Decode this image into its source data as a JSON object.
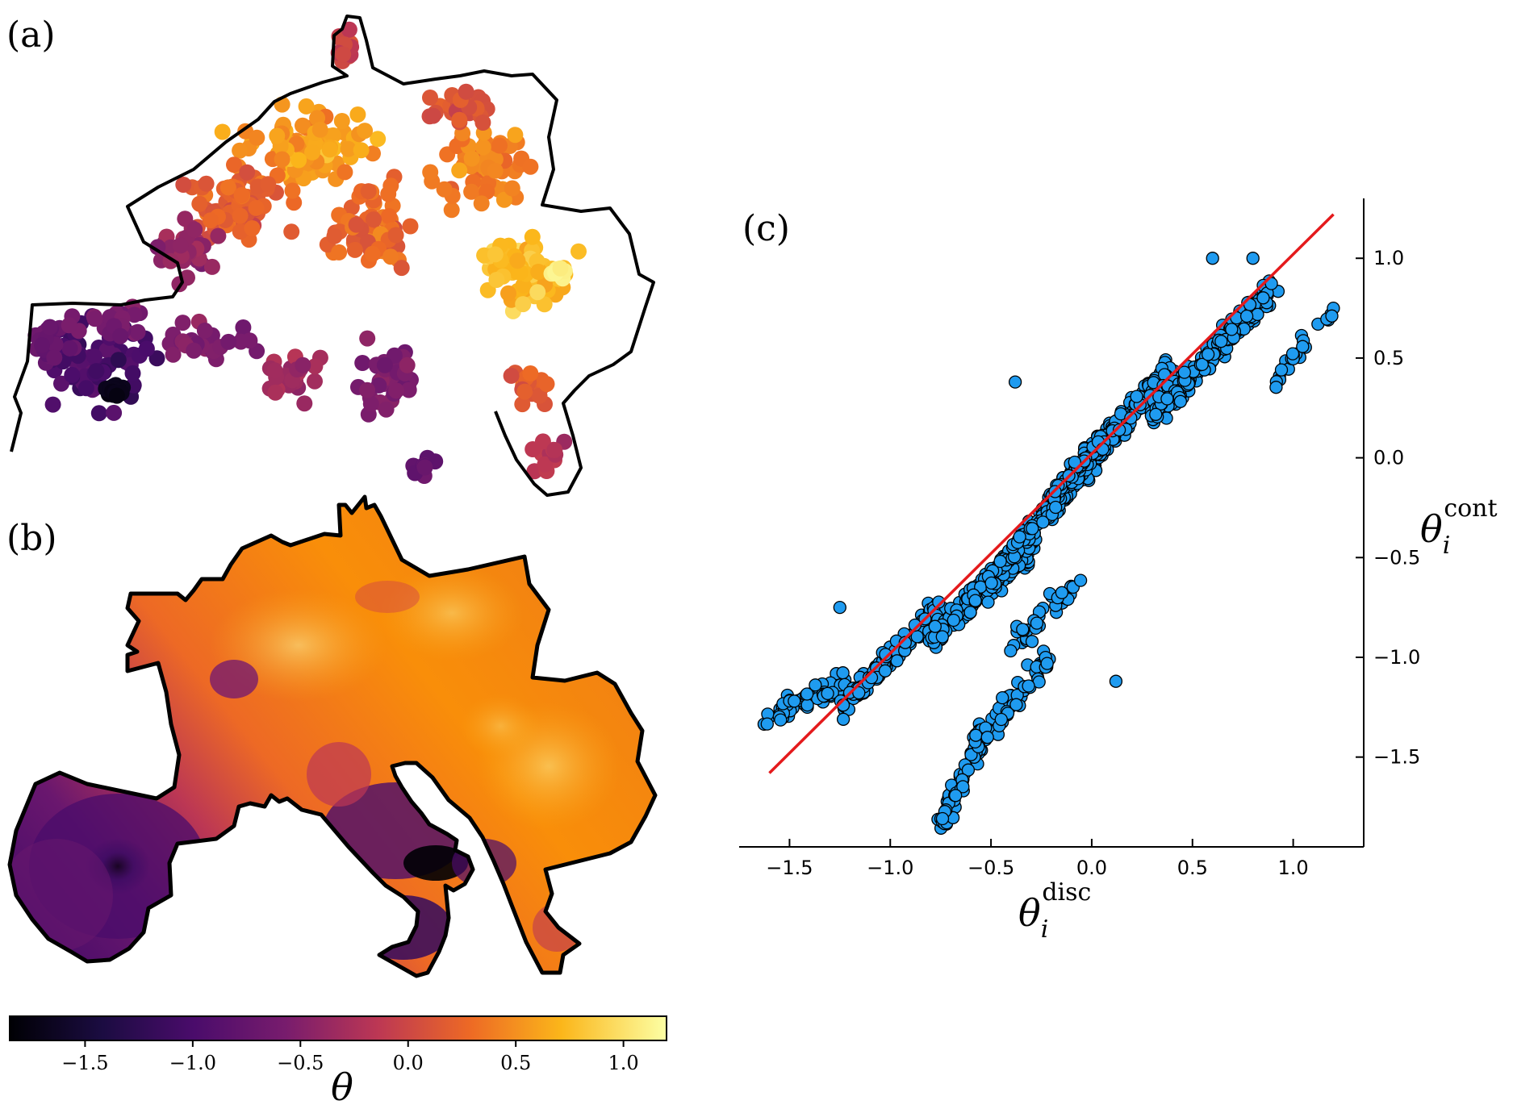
{
  "panels": {
    "a": "(a)",
    "b": "(b)",
    "c": "(c)"
  },
  "colorbar": {
    "label": "θ",
    "ticks": [
      "−1.5",
      "−1.0",
      "−0.5",
      "0.0",
      "0.5",
      "1.0"
    ],
    "tick_values": [
      -1.5,
      -1.0,
      -0.5,
      0.0,
      0.5,
      1.0
    ],
    "range": [
      -1.85,
      1.2
    ],
    "colormap": "inferno",
    "colors": [
      "#000004",
      "#320a5e",
      "#781c6d",
      "#bc3754",
      "#ed6925",
      "#fbb61a",
      "#fcffa4"
    ]
  },
  "chart_data": [
    {
      "type": "scatter",
      "panel": "(a)",
      "description_visible": "network nodes colored by θ over map outline",
      "color_by": "θ",
      "outline_color": "#000000"
    },
    {
      "type": "heatmap",
      "panel": "(b)",
      "color_by": "θ",
      "outline_color": "#000000"
    },
    {
      "type": "scatter",
      "panel": "(c)",
      "xlabel": {
        "base": "θ",
        "sub": "i",
        "sup": "disc"
      },
      "ylabel": {
        "base": "θ",
        "sub": "i",
        "sup": "cont"
      },
      "x_ticks": [
        "−1.5",
        "−1.0",
        "−0.5",
        "0.0",
        "0.5",
        "1.0"
      ],
      "x_tick_values": [
        -1.5,
        -1.0,
        -0.5,
        0.0,
        0.5,
        1.0
      ],
      "y_ticks": [
        "−1.5",
        "−1.0",
        "−0.5",
        "0.0",
        "0.5",
        "1.0"
      ],
      "y_tick_values": [
        -1.5,
        -1.0,
        -0.5,
        0.0,
        0.5,
        1.0
      ],
      "xlim": [
        -1.75,
        1.35
      ],
      "ylim": [
        -1.95,
        1.3
      ],
      "marker_color": "#1f9bf0",
      "line_color": "#e41a1c",
      "fit_line": {
        "x": [
          -1.6,
          1.2
        ],
        "y": [
          -1.58,
          1.22
        ]
      },
      "clusters": [
        {
          "x0": -1.6,
          "x1": -1.2,
          "y0": -1.3,
          "y1": -1.1,
          "n": 60
        },
        {
          "x0": -1.25,
          "x1": -0.75,
          "y0": -1.25,
          "y1": -0.75,
          "n": 110
        },
        {
          "x0": -0.8,
          "x1": -0.3,
          "y0": -0.9,
          "y1": -0.45,
          "n": 160
        },
        {
          "x0": -0.5,
          "x1": 0.05,
          "y0": -0.6,
          "y1": 0.05,
          "n": 220
        },
        {
          "x0": -0.2,
          "x1": 0.4,
          "y0": -0.2,
          "y1": 0.45,
          "n": 260
        },
        {
          "x0": 0.3,
          "x1": 0.9,
          "y0": 0.2,
          "y1": 0.85,
          "n": 200
        },
        {
          "x0": 0.9,
          "x1": 1.2,
          "y0": 0.4,
          "y1": 0.75,
          "n": 25
        },
        {
          "x0": -0.75,
          "x1": -0.55,
          "y0": -1.85,
          "y1": -1.4,
          "n": 60
        },
        {
          "x0": -0.6,
          "x1": -0.2,
          "y0": -1.45,
          "y1": -1.0,
          "n": 70
        },
        {
          "x0": -0.4,
          "x1": -0.05,
          "y0": -0.95,
          "y1": -0.6,
          "n": 35
        }
      ],
      "outliers": [
        {
          "x": 0.6,
          "y": 1.0
        },
        {
          "x": 0.8,
          "y": 1.0
        },
        {
          "x": 0.12,
          "y": -1.12
        },
        {
          "x": -0.38,
          "y": 0.38
        },
        {
          "x": -1.25,
          "y": -0.75
        }
      ]
    }
  ]
}
